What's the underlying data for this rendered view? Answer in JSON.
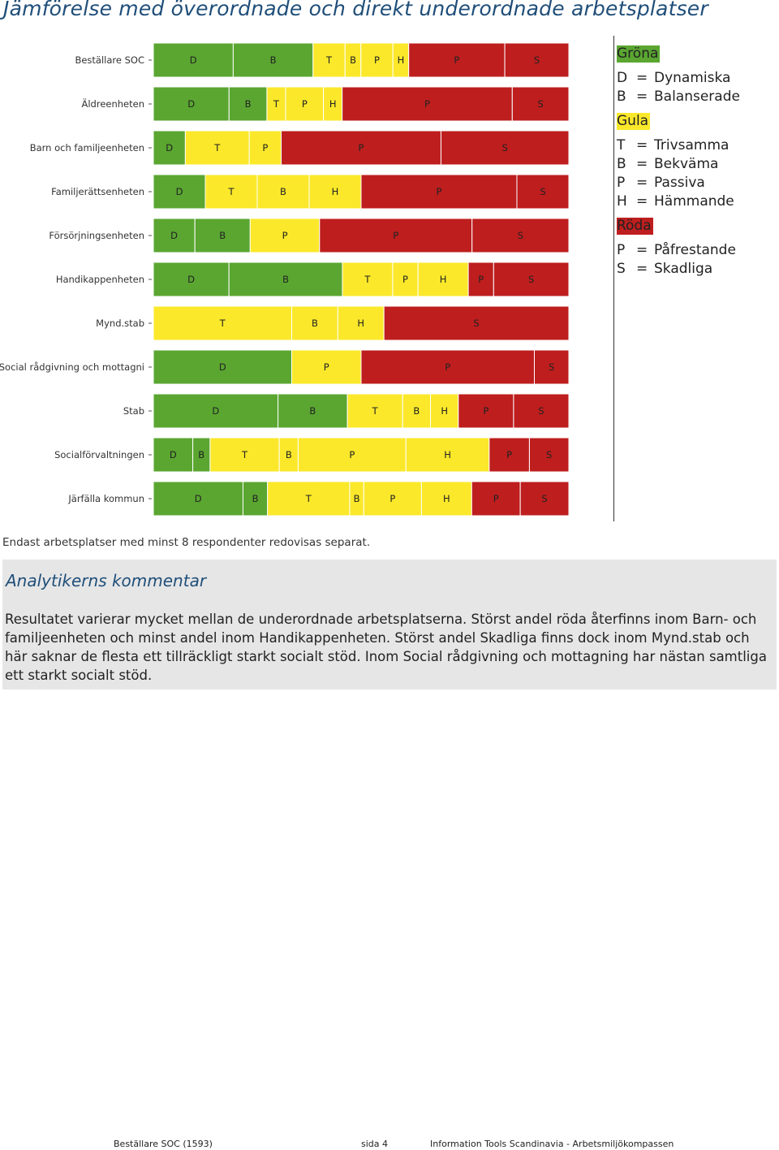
{
  "page": {
    "title": "Jämförelse med överordnade och direkt underordnade arbetsplatser",
    "note": "Endast arbetsplatser med minst 8 respondenter redovisas separat.",
    "comment_title": "Analytikerns kommentar",
    "comment_text": "Resultatet varierar mycket mellan de underordnade arbetsplatserna. Störst andel röda återfinns inom Barn- och familjeenheten och minst andel inom Handikappenheten. Störst andel Skadliga finns dock inom Mynd.stab och här saknar de flesta ett tillräckligt starkt socialt stöd. Inom Social rådgivning och mottagning har nästan samtliga ett starkt socialt stöd."
  },
  "colors": {
    "green": "#5aa631",
    "yellow": "#fbe82a",
    "red": "#be1e1e"
  },
  "legend": {
    "groups": [
      {
        "label": "Gröna",
        "color": "green",
        "items": [
          {
            "key": "D",
            "text": "Dynamiska"
          },
          {
            "key": "B",
            "text": "Balanserade"
          }
        ]
      },
      {
        "label": "Gula",
        "color": "yellow",
        "items": [
          {
            "key": "T",
            "text": "Trivsamma"
          },
          {
            "key": "B",
            "text": "Bekväma"
          },
          {
            "key": "P",
            "text": "Passiva"
          },
          {
            "key": "H",
            "text": "Hämmande"
          }
        ]
      },
      {
        "label": "Röda",
        "color": "red",
        "items": [
          {
            "key": "P",
            "text": "Påfrestande"
          },
          {
            "key": "S",
            "text": "Skadliga"
          }
        ]
      }
    ],
    "equals": "="
  },
  "chart_data": {
    "type": "bar",
    "orientation": "horizontal",
    "stacked": true,
    "unit": "percent",
    "categories": [
      "Beställare SOC",
      "Äldreenheten",
      "Barn och familjeenheten",
      "Familjerättsenheten",
      "Försörjningsenheten",
      "Handikappenheten",
      "Mynd.stab",
      "Social rådgivning och mottagni",
      "Stab",
      "Socialförvaltningen",
      "Järfälla kommun"
    ],
    "rows": [
      [
        {
          "label": "D",
          "color": "green",
          "value": 19.2
        },
        {
          "label": "B",
          "color": "green",
          "value": 19.2
        },
        {
          "label": "T",
          "color": "yellow",
          "value": 7.7
        },
        {
          "label": "B",
          "color": "yellow",
          "value": 3.8
        },
        {
          "label": "P",
          "color": "yellow",
          "value": 7.7
        },
        {
          "label": "H",
          "color": "yellow",
          "value": 3.8
        },
        {
          "label": "P",
          "color": "red",
          "value": 23.1
        },
        {
          "label": "S",
          "color": "red",
          "value": 15.4
        }
      ],
      [
        {
          "label": "D",
          "color": "green",
          "value": 18.2
        },
        {
          "label": "B",
          "color": "green",
          "value": 9.1
        },
        {
          "label": "T",
          "color": "yellow",
          "value": 4.5
        },
        {
          "label": "P",
          "color": "yellow",
          "value": 9.1
        },
        {
          "label": "H",
          "color": "yellow",
          "value": 4.5
        },
        {
          "label": "P",
          "color": "red",
          "value": 40.9
        },
        {
          "label": "S",
          "color": "red",
          "value": 13.6
        }
      ],
      [
        {
          "label": "D",
          "color": "green",
          "value": 7.7
        },
        {
          "label": "T",
          "color": "yellow",
          "value": 15.4
        },
        {
          "label": "P",
          "color": "yellow",
          "value": 7.7
        },
        {
          "label": "P",
          "color": "red",
          "value": 38.5
        },
        {
          "label": "S",
          "color": "red",
          "value": 30.8
        }
      ],
      [
        {
          "label": "D",
          "color": "green",
          "value": 12.5
        },
        {
          "label": "T",
          "color": "yellow",
          "value": 12.5
        },
        {
          "label": "B",
          "color": "yellow",
          "value": 12.5
        },
        {
          "label": "H",
          "color": "yellow",
          "value": 12.5
        },
        {
          "label": "P",
          "color": "red",
          "value": 37.5
        },
        {
          "label": "S",
          "color": "red",
          "value": 12.5
        }
      ],
      [
        {
          "label": "D",
          "color": "green",
          "value": 10
        },
        {
          "label": "B",
          "color": "green",
          "value": 13.3
        },
        {
          "label": "P",
          "color": "yellow",
          "value": 16.7
        },
        {
          "label": "P",
          "color": "red",
          "value": 36.7
        },
        {
          "label": "S",
          "color": "red",
          "value": 23.3
        }
      ],
      [
        {
          "label": "D",
          "color": "green",
          "value": 18.2
        },
        {
          "label": "B",
          "color": "green",
          "value": 27.3
        },
        {
          "label": "T",
          "color": "yellow",
          "value": 12.1
        },
        {
          "label": "P",
          "color": "yellow",
          "value": 6.1
        },
        {
          "label": "H",
          "color": "yellow",
          "value": 12.1
        },
        {
          "label": "P",
          "color": "red",
          "value": 6.1
        },
        {
          "label": "S",
          "color": "red",
          "value": 18.1
        }
      ],
      [
        {
          "label": "T",
          "color": "yellow",
          "value": 33.3
        },
        {
          "label": "B",
          "color": "yellow",
          "value": 11.1
        },
        {
          "label": "H",
          "color": "yellow",
          "value": 11.1
        },
        {
          "label": "S",
          "color": "red",
          "value": 44.5
        }
      ],
      [
        {
          "label": "D",
          "color": "green",
          "value": 33.3
        },
        {
          "label": "P",
          "color": "yellow",
          "value": 16.7
        },
        {
          "label": "P",
          "color": "red",
          "value": 41.7
        },
        {
          "label": "S",
          "color": "red",
          "value": 8.3
        }
      ],
      [
        {
          "label": "D",
          "color": "green",
          "value": 30
        },
        {
          "label": "B",
          "color": "green",
          "value": 16.7
        },
        {
          "label": "T",
          "color": "yellow",
          "value": 13.3
        },
        {
          "label": "B",
          "color": "yellow",
          "value": 6.7
        },
        {
          "label": "H",
          "color": "yellow",
          "value": 6.7
        },
        {
          "label": "P",
          "color": "red",
          "value": 13.3
        },
        {
          "label": "S",
          "color": "red",
          "value": 13.3
        }
      ],
      [
        {
          "label": "D",
          "color": "green",
          "value": 9.8
        },
        {
          "label": "B",
          "color": "green",
          "value": 4.3
        },
        {
          "label": "T",
          "color": "yellow",
          "value": 17.2
        },
        {
          "label": "B",
          "color": "yellow",
          "value": 4.7
        },
        {
          "label": "P",
          "color": "yellow",
          "value": 26.8
        },
        {
          "label": "H",
          "color": "yellow",
          "value": 20.7
        },
        {
          "label": "P",
          "color": "red",
          "value": 10
        },
        {
          "label": "S",
          "color": "red",
          "value": 9.8
        }
      ],
      [
        {
          "label": "D",
          "color": "green",
          "value": 21.6
        },
        {
          "label": "B",
          "color": "green",
          "value": 5.9
        },
        {
          "label": "T",
          "color": "yellow",
          "value": 19.8
        },
        {
          "label": "B",
          "color": "yellow",
          "value": 3.4
        },
        {
          "label": "P",
          "color": "yellow",
          "value": 13.9
        },
        {
          "label": "H",
          "color": "yellow",
          "value": 12.1
        },
        {
          "label": "P",
          "color": "red",
          "value": 11.7
        },
        {
          "label": "S",
          "color": "red",
          "value": 11.7
        }
      ]
    ]
  },
  "footer": {
    "left": "Beställare SOC (1593)",
    "center": "sida 4",
    "right": "Information Tools Scandinavia - Arbetsmiljökompassen"
  }
}
